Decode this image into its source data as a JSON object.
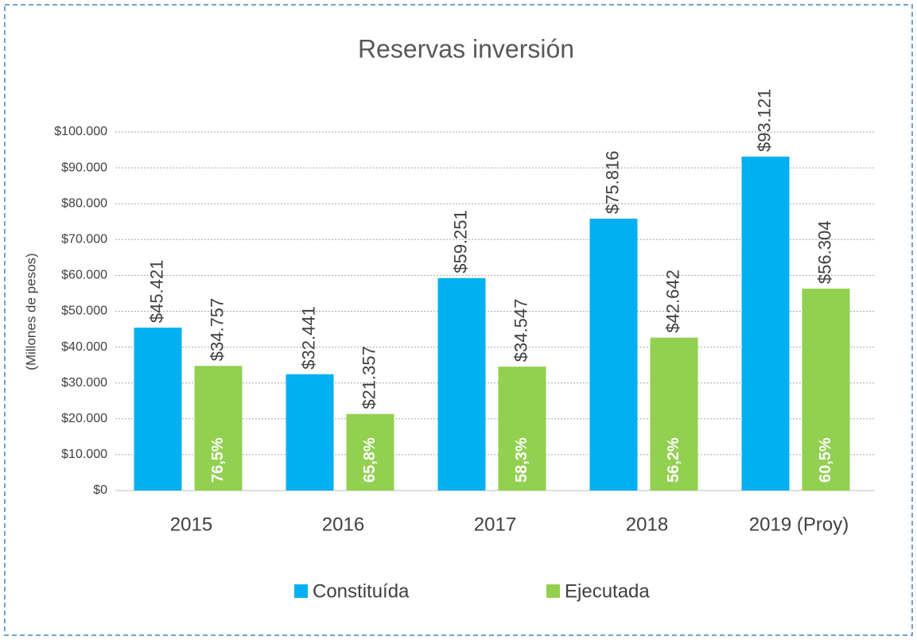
{
  "chart_data": {
    "type": "bar",
    "title": "Reservas inversión",
    "y_label": "(Millones de pesos)",
    "categories": [
      "2015",
      "2016",
      "2017",
      "2018",
      "2019 (Proy)"
    ],
    "series": [
      {
        "name": "Constituída",
        "color": "#00b0f0",
        "values": [
          45421,
          32441,
          59251,
          75816,
          93121
        ],
        "value_labels": [
          "$45.421",
          "$32.441",
          "$59.251",
          "$75.816",
          "$93.121"
        ]
      },
      {
        "name": "Ejecutada",
        "color": "#92d050",
        "values": [
          34757,
          21357,
          34547,
          42642,
          56304
        ],
        "value_labels": [
          "$34.757",
          "$21.357",
          "$34.547",
          "$42.642",
          "$56.304"
        ],
        "percent_labels": [
          "76,5%",
          "65,8%",
          "58,3%",
          "56,2%",
          "60,5%"
        ]
      }
    ],
    "ylim": [
      0,
      100000
    ],
    "yticks": [
      {
        "value": 0,
        "label": "$0"
      },
      {
        "value": 10000,
        "label": "$10.000"
      },
      {
        "value": 20000,
        "label": "$20.000"
      },
      {
        "value": 30000,
        "label": "$30.000"
      },
      {
        "value": 40000,
        "label": "$40.000"
      },
      {
        "value": 50000,
        "label": "$50.000"
      },
      {
        "value": 60000,
        "label": "$60.000"
      },
      {
        "value": 70000,
        "label": "$70.000"
      },
      {
        "value": 80000,
        "label": "$80.000"
      },
      {
        "value": 90000,
        "label": "$90.000"
      },
      {
        "value": 100000,
        "label": "$100.000"
      }
    ],
    "grid": true,
    "legend": "bottom"
  }
}
